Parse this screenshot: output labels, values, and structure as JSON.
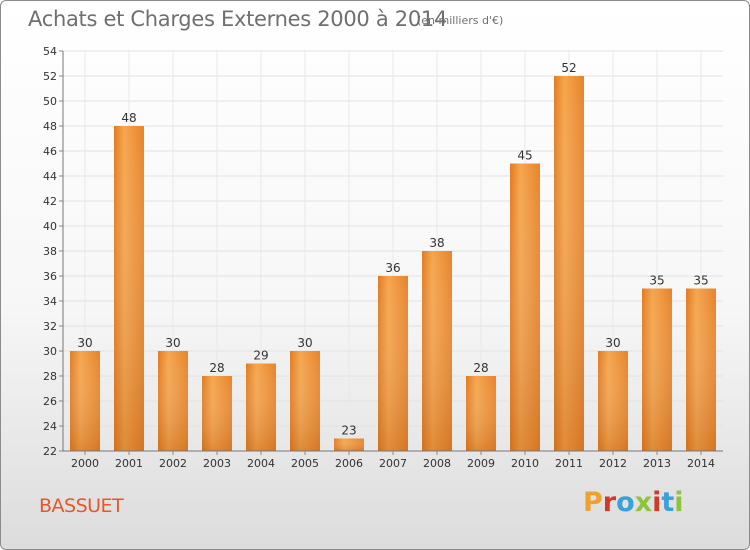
{
  "header": {
    "title": "Achats et Charges Externes 2000 à 2014",
    "subtitle": "(en milliers d'€)"
  },
  "footer": {
    "place": "BASSUET",
    "logo": "Proxiti",
    "logo_colors": [
      "#f0a030",
      "#d03a2a",
      "#3aa0d8",
      "#8cc43c",
      "#d03a2a",
      "#3aa0d8",
      "#8cc43c"
    ]
  },
  "chart_data": {
    "type": "bar",
    "title": "Achats et Charges Externes 2000 à 2014",
    "subtitle": "(en milliers d'€)",
    "xlabel": "",
    "ylabel": "",
    "categories": [
      "2000",
      "2001",
      "2002",
      "2003",
      "2004",
      "2005",
      "2006",
      "2007",
      "2008",
      "2009",
      "2010",
      "2011",
      "2012",
      "2013",
      "2014"
    ],
    "values": [
      30,
      48,
      30,
      28,
      29,
      30,
      23,
      36,
      38,
      28,
      45,
      52,
      30,
      35,
      35
    ],
    "ylim": [
      22,
      54
    ],
    "yticks": [
      22,
      24,
      26,
      28,
      30,
      32,
      34,
      36,
      38,
      40,
      42,
      44,
      46,
      48,
      50,
      52,
      54
    ],
    "grid": true,
    "bar_color": "#f19a3e",
    "bar_color_dark": "#d97820"
  }
}
